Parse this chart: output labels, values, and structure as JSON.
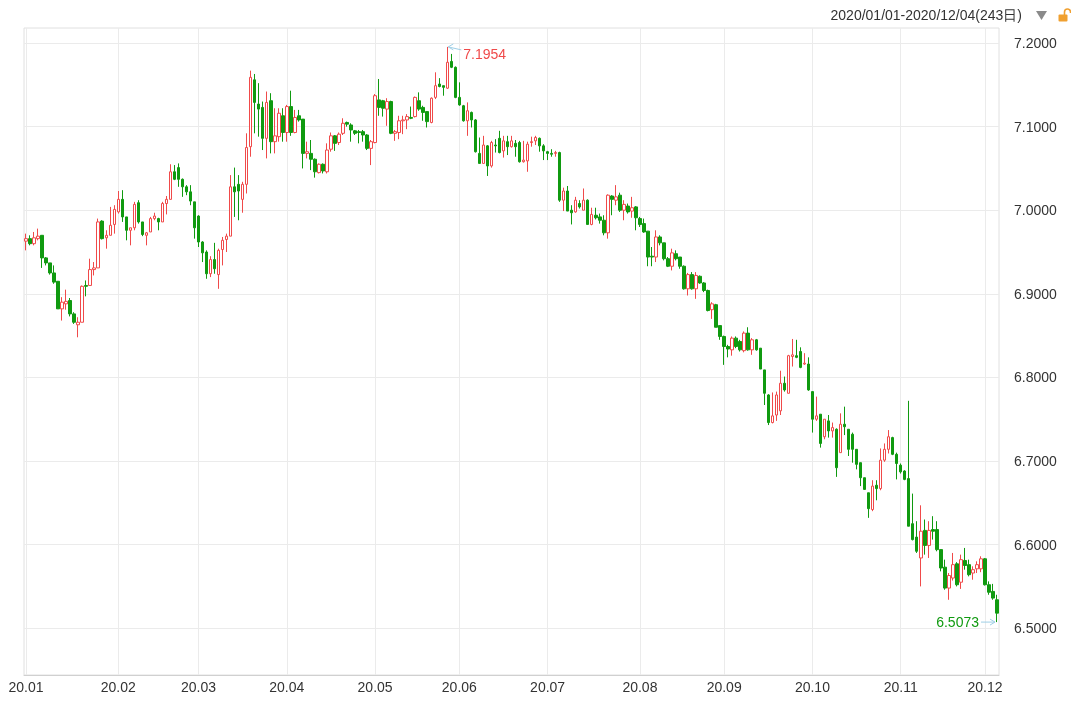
{
  "chart_data": {
    "type": "candlestick",
    "subtitle": "2020/01/01-2020/12/04(243日)",
    "categories": [
      "20.01",
      null,
      null,
      null,
      null,
      null,
      null,
      null,
      null,
      null,
      null,
      null,
      null,
      null,
      null,
      null,
      null,
      null,
      null,
      null,
      null,
      null,
      null,
      "20.02",
      null,
      null,
      null,
      null,
      null,
      null,
      null,
      null,
      null,
      null,
      null,
      null,
      null,
      null,
      null,
      null,
      null,
      null,
      null,
      "20.03",
      null,
      null,
      null,
      null,
      null,
      null,
      null,
      null,
      null,
      null,
      null,
      null,
      null,
      null,
      null,
      null,
      null,
      null,
      null,
      null,
      null,
      "20.04",
      null,
      null,
      null,
      null,
      null,
      null,
      null,
      null,
      null,
      null,
      null,
      null,
      null,
      null,
      null,
      null,
      null,
      null,
      null,
      null,
      null,
      "20.05",
      null,
      null,
      null,
      null,
      null,
      null,
      null,
      null,
      null,
      null,
      null,
      null,
      null,
      null,
      null,
      null,
      null,
      null,
      null,
      null,
      "20.06",
      null,
      null,
      null,
      null,
      null,
      null,
      null,
      null,
      null,
      null,
      null,
      null,
      null,
      null,
      null,
      null,
      null,
      null,
      null,
      null,
      null,
      "20.07",
      null,
      null,
      null,
      null,
      null,
      null,
      null,
      null,
      null,
      null,
      null,
      null,
      null,
      null,
      null,
      null,
      null,
      null,
      null,
      null,
      null,
      null,
      "20.08",
      null,
      null,
      null,
      null,
      null,
      null,
      null,
      null,
      null,
      null,
      null,
      null,
      null,
      null,
      null,
      null,
      null,
      null,
      null,
      null,
      "20.09",
      null,
      null,
      null,
      null,
      null,
      null,
      null,
      null,
      null,
      null,
      null,
      null,
      null,
      null,
      null,
      null,
      null,
      null,
      null,
      null,
      null,
      "20.10",
      null,
      null,
      null,
      null,
      null,
      null,
      null,
      null,
      null,
      null,
      null,
      null,
      null,
      null,
      null,
      null,
      null,
      null,
      null,
      null,
      null,
      "20.11",
      null,
      null,
      null,
      null,
      null,
      null,
      null,
      null,
      null,
      null,
      null,
      null,
      null,
      null,
      null,
      null,
      null,
      null,
      null,
      null,
      "20.12",
      null,
      null,
      null
    ],
    "ohlc": [
      [
        6.963,
        6.972,
        6.952,
        6.966
      ],
      [
        6.966,
        6.97,
        6.958,
        6.96
      ],
      [
        6.96,
        6.974,
        6.958,
        6.967
      ],
      [
        6.966,
        6.978,
        6.964,
        6.969
      ],
      [
        6.97,
        6.97,
        6.931,
        6.943
      ],
      [
        6.943,
        6.944,
        6.934,
        6.937
      ],
      [
        6.937,
        6.937,
        6.923,
        6.925
      ],
      [
        6.925,
        6.934,
        6.912,
        6.914
      ],
      [
        6.915,
        6.915,
        6.882,
        6.882
      ],
      [
        6.882,
        6.896,
        6.868,
        6.89
      ],
      [
        6.888,
        6.905,
        6.881,
        6.891
      ],
      [
        6.892,
        6.895,
        6.873,
        6.876
      ],
      [
        6.876,
        6.878,
        6.864,
        6.866
      ],
      [
        6.863,
        6.872,
        6.848,
        6.866
      ],
      [
        6.866,
        6.91,
        6.866,
        6.909
      ],
      [
        6.91,
        6.916,
        6.897,
        6.909
      ],
      [
        6.91,
        6.942,
        6.91,
        6.929
      ],
      [
        6.929,
        6.938,
        6.922,
        6.931
      ],
      [
        6.931,
        6.99,
        6.931,
        6.986
      ],
      [
        6.987,
        6.988,
        6.965,
        6.966
      ],
      [
        6.967,
        6.976,
        6.954,
        6.97
      ],
      [
        6.97,
        7.004,
        6.97,
        6.982
      ],
      [
        6.983,
        7.006,
        6.972,
        7.001
      ],
      [
        6.998,
        7.023,
        6.996,
        7.013
      ],
      [
        7.013,
        7.024,
        6.986,
        6.992
      ],
      [
        6.992,
        6.992,
        6.964,
        6.976
      ],
      [
        6.976,
        6.979,
        6.958,
        6.979
      ],
      [
        6.979,
        7.01,
        6.976,
        7.007
      ],
      [
        7.009,
        7.012,
        6.984,
        6.986
      ],
      [
        6.986,
        6.986,
        6.969,
        6.971
      ],
      [
        6.97,
        6.974,
        6.958,
        6.973
      ],
      [
        6.974,
        6.992,
        6.974,
        6.99
      ],
      [
        6.99,
        6.997,
        6.988,
        6.993
      ],
      [
        6.99,
        6.991,
        6.976,
        6.986
      ],
      [
        6.986,
        7.01,
        6.986,
        7.008
      ],
      [
        7.008,
        7.017,
        6.995,
        7.013
      ],
      [
        7.013,
        7.055,
        7.013,
        7.046
      ],
      [
        7.046,
        7.054,
        7.036,
        7.037
      ],
      [
        7.051,
        7.056,
        7.028,
        7.037
      ],
      [
        7.037,
        7.038,
        7.016,
        7.028
      ],
      [
        7.028,
        7.03,
        7.018,
        7.022
      ],
      [
        7.022,
        7.03,
        7.006,
        7.011
      ],
      [
        7.01,
        7.01,
        6.966,
        6.979
      ],
      [
        6.993,
        6.994,
        6.956,
        6.962
      ],
      [
        6.962,
        6.963,
        6.938,
        6.949
      ],
      [
        6.95,
        6.952,
        6.918,
        6.924
      ],
      [
        6.924,
        6.945,
        6.92,
        6.941
      ],
      [
        6.941,
        6.961,
        6.924,
        6.93
      ],
      [
        6.923,
        6.954,
        6.906,
        6.952
      ],
      [
        6.953,
        6.968,
        6.934,
        6.964
      ],
      [
        6.965,
        6.972,
        6.95,
        6.969
      ],
      [
        6.969,
        7.042,
        6.969,
        7.028
      ],
      [
        7.028,
        7.051,
        6.992,
        7.022
      ],
      [
        7.031,
        7.042,
        6.988,
        7.023
      ],
      [
        7.013,
        7.034,
        6.997,
        7.031
      ],
      [
        7.031,
        7.092,
        7.02,
        7.075
      ],
      [
        7.076,
        7.167,
        7.064,
        7.159
      ],
      [
        7.156,
        7.163,
        7.092,
        7.129
      ],
      [
        7.127,
        7.152,
        7.088,
        7.121
      ],
      [
        7.123,
        7.13,
        7.072,
        7.086
      ],
      [
        7.086,
        7.142,
        7.062,
        7.129
      ],
      [
        7.131,
        7.14,
        7.068,
        7.082
      ],
      [
        7.082,
        7.122,
        7.068,
        7.089
      ],
      [
        7.088,
        7.122,
        7.082,
        7.116
      ],
      [
        7.113,
        7.122,
        7.082,
        7.093
      ],
      [
        7.093,
        7.126,
        7.082,
        7.124
      ],
      [
        7.124,
        7.143,
        7.089,
        7.093
      ],
      [
        7.093,
        7.12,
        7.092,
        7.111
      ],
      [
        7.113,
        7.12,
        7.106,
        7.108
      ],
      [
        7.109,
        7.109,
        7.05,
        7.068
      ],
      [
        7.068,
        7.082,
        7.062,
        7.07
      ],
      [
        7.068,
        7.084,
        7.048,
        7.061
      ],
      [
        7.061,
        7.062,
        7.039,
        7.046
      ],
      [
        7.045,
        7.056,
        7.044,
        7.055
      ],
      [
        7.055,
        7.056,
        7.044,
        7.047
      ],
      [
        7.046,
        7.08,
        7.044,
        7.072
      ],
      [
        7.073,
        7.093,
        7.07,
        7.089
      ],
      [
        7.089,
        7.09,
        7.071,
        7.08
      ],
      [
        7.081,
        7.093,
        7.078,
        7.091
      ],
      [
        7.092,
        7.11,
        7.09,
        7.104
      ],
      [
        7.105,
        7.106,
        7.1,
        7.103
      ],
      [
        7.102,
        7.104,
        7.082,
        7.096
      ],
      [
        7.095,
        7.096,
        7.09,
        7.092
      ],
      [
        7.094,
        7.096,
        7.08,
        7.093
      ],
      [
        7.094,
        7.096,
        7.082,
        7.09
      ],
      [
        7.09,
        7.091,
        7.072,
        7.074
      ],
      [
        7.074,
        7.084,
        7.054,
        7.082
      ],
      [
        7.081,
        7.139,
        7.08,
        7.137
      ],
      [
        7.132,
        7.157,
        7.113,
        7.123
      ],
      [
        7.131,
        7.132,
        7.112,
        7.122
      ],
      [
        7.121,
        7.134,
        7.101,
        7.13
      ],
      [
        7.13,
        7.131,
        7.091,
        7.092
      ],
      [
        7.092,
        7.096,
        7.083,
        7.094
      ],
      [
        7.093,
        7.113,
        7.085,
        7.107
      ],
      [
        7.107,
        7.113,
        7.091,
        7.108
      ],
      [
        7.108,
        7.115,
        7.097,
        7.112
      ],
      [
        7.111,
        7.124,
        7.109,
        7.11
      ],
      [
        7.112,
        7.136,
        7.111,
        7.135
      ],
      [
        7.131,
        7.141,
        7.119,
        7.121
      ],
      [
        7.123,
        7.125,
        7.107,
        7.117
      ],
      [
        7.118,
        7.118,
        7.099,
        7.106
      ],
      [
        7.105,
        7.135,
        7.104,
        7.134
      ],
      [
        7.135,
        7.165,
        7.133,
        7.149
      ],
      [
        7.151,
        7.158,
        7.147,
        7.148
      ],
      [
        7.149,
        7.149,
        7.137,
        7.147
      ],
      [
        7.146,
        7.1954,
        7.145,
        7.177
      ],
      [
        7.178,
        7.187,
        7.17,
        7.171
      ],
      [
        7.171,
        7.172,
        7.134,
        7.135
      ],
      [
        7.135,
        7.153,
        7.125,
        7.126
      ],
      [
        7.125,
        7.126,
        7.106,
        7.107
      ],
      [
        7.107,
        7.129,
        7.089,
        7.119
      ],
      [
        7.117,
        7.118,
        7.099,
        7.108
      ],
      [
        7.108,
        7.109,
        7.069,
        7.07
      ],
      [
        7.068,
        7.087,
        7.056,
        7.056
      ],
      [
        7.056,
        7.089,
        7.056,
        7.078
      ],
      [
        7.077,
        7.078,
        7.041,
        7.053
      ],
      [
        7.053,
        7.083,
        7.051,
        7.081
      ],
      [
        7.078,
        7.085,
        7.069,
        7.077
      ],
      [
        7.086,
        7.095,
        7.068,
        7.069
      ],
      [
        7.071,
        7.089,
        7.063,
        7.083
      ],
      [
        7.082,
        7.089,
        7.066,
        7.076
      ],
      [
        7.076,
        7.089,
        7.075,
        7.083
      ],
      [
        7.08,
        7.084,
        7.064,
        7.076
      ],
      [
        7.081,
        7.083,
        7.057,
        7.058
      ],
      [
        7.058,
        7.083,
        7.057,
        7.06
      ],
      [
        7.059,
        7.082,
        7.046,
        7.079
      ],
      [
        7.081,
        7.088,
        7.076,
        7.082
      ],
      [
        7.083,
        7.089,
        7.078,
        7.087
      ],
      [
        7.086,
        7.087,
        7.07,
        7.077
      ],
      [
        7.077,
        7.079,
        7.06,
        7.071
      ],
      [
        7.07,
        7.071,
        7.06,
        7.068
      ],
      [
        7.068,
        7.073,
        7.064,
        7.067
      ],
      [
        7.068,
        7.071,
        7.064,
        7.069
      ],
      [
        7.069,
        7.07,
        7.01,
        7.012
      ],
      [
        7.012,
        7.027,
        6.999,
        7.023
      ],
      [
        7.023,
        7.029,
        6.999,
        6.999
      ],
      [
        7.0,
        7.006,
        6.983,
        6.997
      ],
      [
        6.998,
        7.016,
        6.997,
        7.012
      ],
      [
        7.008,
        7.012,
        7.002,
        7.004
      ],
      [
        7.0,
        7.026,
        7.0,
        7.012
      ],
      [
        7.012,
        7.013,
        6.983,
        6.983
      ],
      [
        6.983,
        7.003,
        6.982,
        6.995
      ],
      [
        6.994,
        7.003,
        6.989,
        6.991
      ],
      [
        6.992,
        6.996,
        6.984,
        6.988
      ],
      [
        6.988,
        6.994,
        6.97,
        6.973
      ],
      [
        6.973,
        7.019,
        6.966,
        7.018
      ],
      [
        7.017,
        7.018,
        6.994,
        7.013
      ],
      [
        7.012,
        7.03,
        7.006,
        7.016
      ],
      [
        7.018,
        7.021,
        6.998,
        7.0
      ],
      [
        7.0,
        7.012,
        6.988,
        7.007
      ],
      [
        7.005,
        7.008,
        6.996,
        6.998
      ],
      [
        6.999,
        7.016,
        6.991,
        7.003
      ],
      [
        7.004,
        7.005,
        6.976,
        6.991
      ],
      [
        6.99,
        6.992,
        6.98,
        6.983
      ],
      [
        6.984,
        6.99,
        6.973,
        6.974
      ],
      [
        6.975,
        6.975,
        6.933,
        6.944
      ],
      [
        6.945,
        6.956,
        6.933,
        6.944
      ],
      [
        6.944,
        6.976,
        6.938,
        6.968
      ],
      [
        6.968,
        6.97,
        6.958,
        6.961
      ],
      [
        6.961,
        6.961,
        6.94,
        6.942
      ],
      [
        6.942,
        6.944,
        6.932,
        6.933
      ],
      [
        6.933,
        6.954,
        6.928,
        6.949
      ],
      [
        6.948,
        6.952,
        6.94,
        6.942
      ],
      [
        6.944,
        6.944,
        6.93,
        6.933
      ],
      [
        6.933,
        6.934,
        6.905,
        6.906
      ],
      [
        6.906,
        6.925,
        6.898,
        6.923
      ],
      [
        6.923,
        6.926,
        6.905,
        6.906
      ],
      [
        6.906,
        6.926,
        6.894,
        6.922
      ],
      [
        6.921,
        6.922,
        6.912,
        6.913
      ],
      [
        6.913,
        6.914,
        6.902,
        6.904
      ],
      [
        6.904,
        6.905,
        6.879,
        6.88
      ],
      [
        6.881,
        6.89,
        6.87,
        6.888
      ],
      [
        6.887,
        6.888,
        6.86,
        6.86
      ],
      [
        6.862,
        6.862,
        6.845,
        6.849
      ],
      [
        6.849,
        6.85,
        6.815,
        6.837
      ],
      [
        6.837,
        6.839,
        6.824,
        6.834
      ],
      [
        6.833,
        6.849,
        6.826,
        6.847
      ],
      [
        6.847,
        6.849,
        6.835,
        6.837
      ],
      [
        6.843,
        6.845,
        6.831,
        6.833
      ],
      [
        6.832,
        6.855,
        6.83,
        6.853
      ],
      [
        6.853,
        6.86,
        6.832,
        6.833
      ],
      [
        6.833,
        6.847,
        6.827,
        6.845
      ],
      [
        6.845,
        6.846,
        6.832,
        6.833
      ],
      [
        6.835,
        6.835,
        6.81,
        6.81
      ],
      [
        6.809,
        6.809,
        6.767,
        6.781
      ],
      [
        6.779,
        6.78,
        6.743,
        6.746
      ],
      [
        6.746,
        6.782,
        6.745,
        6.754
      ],
      [
        6.755,
        6.783,
        6.748,
        6.779
      ],
      [
        6.76,
        6.808,
        6.755,
        6.793
      ],
      [
        6.793,
        6.801,
        6.783,
        6.785
      ],
      [
        6.781,
        6.827,
        6.781,
        6.826
      ],
      [
        6.825,
        6.846,
        6.813,
        6.827
      ],
      [
        6.826,
        6.845,
        6.823,
        6.824
      ],
      [
        6.831,
        6.836,
        6.811,
        6.812
      ],
      [
        6.816,
        6.829,
        6.815,
        6.817
      ],
      [
        6.816,
        6.824,
        6.784,
        6.785
      ],
      [
        6.783,
        6.783,
        6.734,
        6.75
      ],
      [
        6.75,
        6.777,
        6.748,
        6.754
      ],
      [
        6.756,
        6.756,
        6.716,
        6.721
      ],
      [
        6.729,
        6.75,
        6.726,
        6.75
      ],
      [
        6.748,
        6.755,
        6.728,
        6.736
      ],
      [
        6.736,
        6.746,
        6.728,
        6.74
      ],
      [
        6.738,
        6.739,
        6.681,
        6.692
      ],
      [
        6.71,
        6.757,
        6.71,
        6.744
      ],
      [
        6.744,
        6.765,
        6.731,
        6.741
      ],
      [
        6.738,
        6.738,
        6.706,
        6.714
      ],
      [
        6.732,
        6.734,
        6.698,
        6.714
      ],
      [
        6.714,
        6.714,
        6.69,
        6.696
      ],
      [
        6.698,
        6.698,
        6.67,
        6.68
      ],
      [
        6.68,
        6.68,
        6.666,
        6.666
      ],
      [
        6.662,
        6.662,
        6.632,
        6.643
      ],
      [
        6.642,
        6.677,
        6.64,
        6.67
      ],
      [
        6.671,
        6.677,
        6.653,
        6.667
      ],
      [
        6.667,
        6.715,
        6.665,
        6.701
      ],
      [
        6.701,
        6.721,
        6.699,
        6.714
      ],
      [
        6.714,
        6.737,
        6.709,
        6.729
      ],
      [
        6.728,
        6.729,
        6.707,
        6.708
      ],
      [
        6.708,
        6.71,
        6.678,
        6.697
      ],
      [
        6.695,
        6.697,
        6.685,
        6.687
      ],
      [
        6.688,
        6.689,
        6.677,
        6.678
      ],
      [
        6.679,
        6.772,
        6.622,
        6.622
      ],
      [
        6.625,
        6.661,
        6.605,
        6.606
      ],
      [
        6.609,
        6.628,
        6.59,
        6.592
      ],
      [
        6.584,
        6.647,
        6.55,
        6.616
      ],
      [
        6.617,
        6.63,
        6.588,
        6.599
      ],
      [
        6.599,
        6.628,
        6.584,
        6.617
      ],
      [
        6.618,
        6.634,
        6.606,
        6.616
      ],
      [
        6.618,
        6.628,
        6.592,
        6.594
      ],
      [
        6.594,
        6.594,
        6.568,
        6.572
      ],
      [
        6.573,
        6.582,
        6.546,
        6.548
      ],
      [
        6.548,
        6.566,
        6.534,
        6.563
      ],
      [
        6.56,
        6.59,
        6.557,
        6.576
      ],
      [
        6.577,
        6.579,
        6.55,
        6.552
      ],
      [
        6.555,
        6.588,
        6.547,
        6.582
      ],
      [
        6.581,
        6.596,
        6.57,
        6.575
      ],
      [
        6.576,
        6.582,
        6.562,
        6.564
      ],
      [
        6.566,
        6.574,
        6.558,
        6.57
      ],
      [
        6.571,
        6.58,
        6.566,
        6.576
      ],
      [
        6.571,
        6.586,
        6.567,
        6.583
      ],
      [
        6.583,
        6.584,
        6.551,
        6.552
      ],
      [
        6.552,
        6.556,
        6.54,
        6.543
      ],
      [
        6.544,
        6.553,
        6.534,
        6.536
      ],
      [
        6.534,
        6.54,
        6.5073,
        6.518
      ]
    ],
    "colors": [
      "#f04a4a",
      "#109a10",
      "#f04a4a",
      "#f04a4a",
      "#109a10",
      "#109a10",
      "#109a10",
      "#109a10",
      "#109a10",
      "#f04a4a",
      "#f04a4a",
      "#109a10",
      "#109a10",
      "#f04a4a",
      "#f04a4a",
      "#109a10",
      "#f04a4a",
      "#f04a4a",
      "#f04a4a",
      "#109a10",
      "#f04a4a",
      "#f04a4a",
      "#f04a4a",
      "#f04a4a",
      "#109a10",
      "#109a10",
      "#f04a4a",
      "#f04a4a",
      "#109a10",
      "#109a10",
      "#f04a4a",
      "#f04a4a",
      "#f04a4a",
      "#109a10",
      "#f04a4a",
      "#f04a4a",
      "#f04a4a",
      "#109a10",
      "#109a10",
      "#109a10",
      "#109a10",
      "#109a10",
      "#109a10",
      "#109a10",
      "#109a10",
      "#109a10",
      "#f04a4a",
      "#109a10",
      "#f04a4a",
      "#f04a4a",
      "#f04a4a",
      "#f04a4a",
      "#109a10",
      "#109a10",
      "#f04a4a",
      "#f04a4a",
      "#f04a4a",
      "#109a10",
      "#109a10",
      "#109a10",
      "#f04a4a",
      "#109a10",
      "#f04a4a",
      "#f04a4a",
      "#109a10",
      "#f04a4a",
      "#109a10",
      "#f04a4a",
      "#109a10",
      "#109a10",
      "#f04a4a",
      "#109a10",
      "#109a10",
      "#f04a4a",
      "#109a10",
      "#f04a4a",
      "#f04a4a",
      "#109a10",
      "#f04a4a",
      "#f04a4a",
      "#109a10",
      "#109a10",
      "#109a10",
      "#109a10",
      "#109a10",
      "#109a10",
      "#f04a4a",
      "#f04a4a",
      "#109a10",
      "#109a10",
      "#f04a4a",
      "#109a10",
      "#f04a4a",
      "#f04a4a",
      "#f04a4a",
      "#f04a4a",
      "#109a10",
      "#f04a4a",
      "#109a10",
      "#109a10",
      "#109a10",
      "#f04a4a",
      "#f04a4a",
      "#109a10",
      "#109a10",
      "#f04a4a",
      "#109a10",
      "#109a10",
      "#109a10",
      "#109a10",
      "#f04a4a",
      "#109a10",
      "#109a10",
      "#109a10",
      "#f04a4a",
      "#109a10",
      "#f04a4a",
      "#109a10",
      "#109a10",
      "#f04a4a",
      "#109a10",
      "#f04a4a",
      "#109a10",
      "#109a10",
      "#f04a4a",
      "#f04a4a",
      "#f04a4a",
      "#f04a4a",
      "#109a10",
      "#109a10",
      "#109a10",
      "#109a10",
      "#f04a4a",
      "#109a10",
      "#f04a4a",
      "#109a10",
      "#109a10",
      "#f04a4a",
      "#109a10",
      "#f04a4a",
      "#109a10",
      "#f04a4a",
      "#109a10",
      "#109a10",
      "#109a10",
      "#f04a4a",
      "#109a10",
      "#f04a4a",
      "#109a10",
      "#f04a4a",
      "#109a10",
      "#f04a4a",
      "#109a10",
      "#109a10",
      "#109a10",
      "#109a10",
      "#109a10",
      "#f04a4a",
      "#109a10",
      "#109a10",
      "#109a10",
      "#f04a4a",
      "#109a10",
      "#109a10",
      "#109a10",
      "#f04a4a",
      "#109a10",
      "#f04a4a",
      "#109a10",
      "#109a10",
      "#109a10",
      "#f04a4a",
      "#109a10",
      "#109a10",
      "#109a10",
      "#109a10",
      "#f04a4a",
      "#109a10",
      "#109a10",
      "#f04a4a",
      "#109a10",
      "#f04a4a",
      "#109a10",
      "#109a10",
      "#109a10",
      "#109a10",
      "#f04a4a",
      "#f04a4a",
      "#f04a4a",
      "#109a10",
      "#f04a4a",
      "#f04a4a",
      "#109a10",
      "#109a10",
      "#f04a4a",
      "#109a10",
      "#109a10",
      "#f04a4a",
      "#109a10",
      "#f04a4a",
      "#109a10",
      "#f04a4a",
      "#109a10",
      "#f04a4a",
      "#109a10",
      "#109a10",
      "#109a10",
      "#109a10",
      "#109a10",
      "#109a10",
      "#109a10",
      "#f04a4a",
      "#109a10",
      "#f04a4a",
      "#f04a4a",
      "#f04a4a",
      "#109a10",
      "#109a10",
      "#109a10",
      "#109a10",
      "#109a10",
      "#109a10",
      "#109a10",
      "#f04a4a",
      "#109a10",
      "#f04a4a",
      "#109a10",
      "#109a10",
      "#109a10",
      "#109a10",
      "#f04a4a",
      "#f04a4a",
      "#109a10",
      "#f04a4a",
      "#109a10",
      "#109a10",
      "#f04a4a",
      "#f04a4a",
      "#f04a4a",
      "#109a10",
      "#109a10",
      "#109a10",
      "#109a10"
    ],
    "ylim": [
      6.444,
      7.218
    ],
    "yticks": [
      {
        "value": 6.5,
        "label": "6.5000"
      },
      {
        "value": 6.6,
        "label": "6.6000"
      },
      {
        "value": 6.7,
        "label": "6.7000"
      },
      {
        "value": 6.8,
        "label": "6.8000"
      },
      {
        "value": 6.9,
        "label": "6.9000"
      },
      {
        "value": 7.0,
        "label": "7.0000"
      },
      {
        "value": 7.1,
        "label": "7.1000"
      },
      {
        "value": 7.2,
        "label": "7.2000"
      }
    ],
    "grid": true,
    "annotations": [
      "7.1954",
      "6.5073"
    ]
  }
}
